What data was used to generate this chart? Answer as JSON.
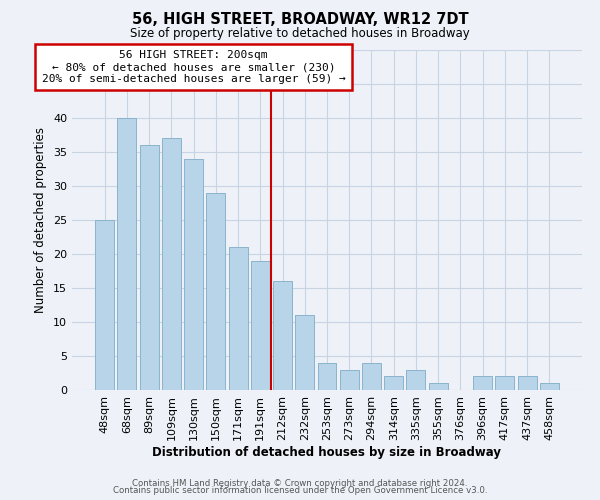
{
  "title": "56, HIGH STREET, BROADWAY, WR12 7DT",
  "subtitle": "Size of property relative to detached houses in Broadway",
  "xlabel": "Distribution of detached houses by size in Broadway",
  "ylabel": "Number of detached properties",
  "bar_labels": [
    "48sqm",
    "68sqm",
    "89sqm",
    "109sqm",
    "130sqm",
    "150sqm",
    "171sqm",
    "191sqm",
    "212sqm",
    "232sqm",
    "253sqm",
    "273sqm",
    "294sqm",
    "314sqm",
    "335sqm",
    "355sqm",
    "376sqm",
    "396sqm",
    "417sqm",
    "437sqm",
    "458sqm"
  ],
  "bar_values": [
    25,
    40,
    36,
    37,
    34,
    29,
    21,
    19,
    16,
    11,
    4,
    3,
    4,
    2,
    3,
    1,
    0,
    2,
    2,
    2,
    1
  ],
  "bar_color": "#b8d4e8",
  "bar_edge_color": "#8ab4cc",
  "vline_color": "#cc0000",
  "annotation_title": "56 HIGH STREET: 200sqm",
  "annotation_line1": "← 80% of detached houses are smaller (230)",
  "annotation_line2": "20% of semi-detached houses are larger (59) →",
  "annotation_box_color": "#ffffff",
  "annotation_box_edge": "#cc0000",
  "ylim": [
    0,
    50
  ],
  "yticks": [
    0,
    5,
    10,
    15,
    20,
    25,
    30,
    35,
    40,
    45,
    50
  ],
  "grid_color": "#c8d4e4",
  "footer1": "Contains HM Land Registry data © Crown copyright and database right 2024.",
  "footer2": "Contains public sector information licensed under the Open Government Licence v3.0.",
  "bg_color": "#eef2f8"
}
